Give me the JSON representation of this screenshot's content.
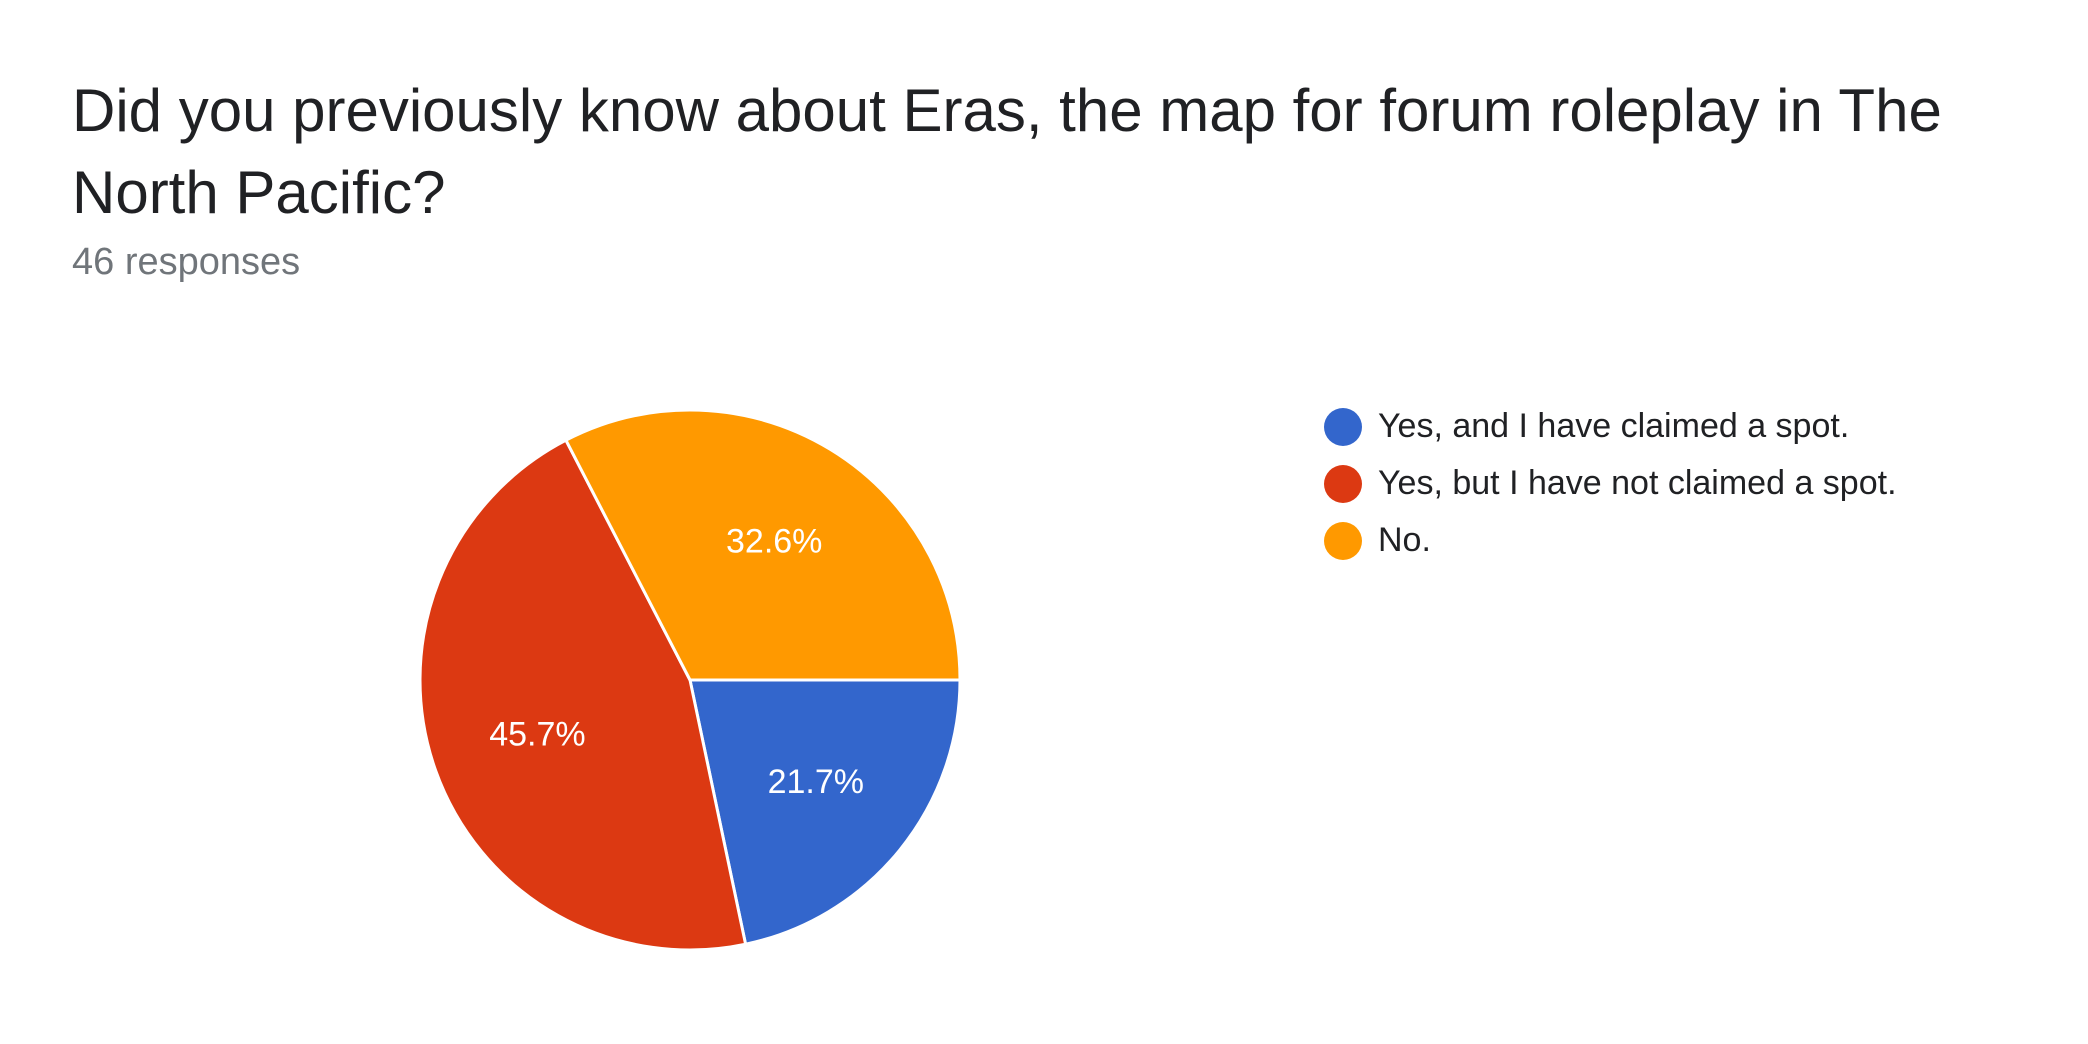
{
  "header": {
    "question": "Did you previously know about Eras, the map for forum roleplay in The North Pacific?",
    "responses": "46 responses"
  },
  "chart_data": {
    "type": "pie",
    "title": "Did you previously know about Eras, the map for forum roleplay in The North Pacific?",
    "total_responses": 46,
    "start_angle_deg": 90,
    "direction": "clockwise",
    "legend_position": "right",
    "slices": [
      {
        "label": "Yes, and I have claimed a spot.",
        "value": 21.7,
        "display": "21.7%",
        "color": "#3366cc"
      },
      {
        "label": "Yes, but I have not claimed a spot.",
        "value": 45.7,
        "display": "45.7%",
        "color": "#dc3912"
      },
      {
        "label": "No.",
        "value": 32.6,
        "display": "32.6%",
        "color": "#ff9900"
      }
    ]
  }
}
